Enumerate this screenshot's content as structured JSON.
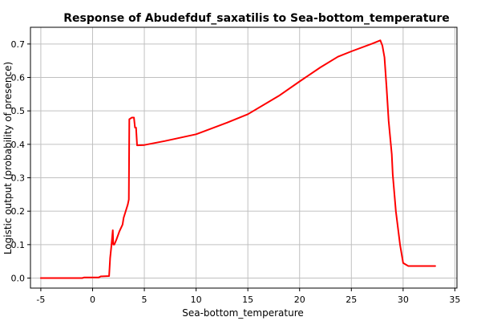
{
  "chart_data": {
    "type": "line",
    "title": "Response of Abudefduf_saxatilis to Sea-bottom_temperature",
    "xlabel": "Sea-bottom_temperature",
    "ylabel": "Logistic output (probability of presence)",
    "xlim": [
      -6.0,
      35.2
    ],
    "ylim": [
      -0.03,
      0.75
    ],
    "xticks": [
      -5,
      0,
      5,
      10,
      15,
      20,
      25,
      30,
      35
    ],
    "yticks": [
      0.0,
      0.1,
      0.2,
      0.3,
      0.4,
      0.5,
      0.6,
      0.7
    ],
    "grid": true,
    "line_color": "#ff0000",
    "series": [
      {
        "x": [
          -5.0,
          -1.0,
          -0.8,
          0.6,
          0.8,
          1.6,
          1.7,
          1.8,
          1.95,
          2.0,
          2.05,
          2.1,
          2.3,
          2.6,
          2.9,
          3.0,
          3.4,
          3.5,
          3.55,
          3.8,
          4.0,
          4.1,
          4.2,
          4.3,
          5.0,
          7.0,
          10.0,
          13.0,
          15.0,
          18.0,
          20.0,
          22.0,
          23.7,
          25.0,
          27.0,
          27.8,
          28.0,
          28.2,
          28.4,
          28.6,
          28.9,
          29.0,
          29.3,
          29.7,
          30.0,
          30.5,
          33.1
        ],
        "y": [
          0.0,
          0.0,
          0.002,
          0.002,
          0.005,
          0.006,
          0.06,
          0.09,
          0.143,
          0.1,
          0.1,
          0.1,
          0.115,
          0.14,
          0.16,
          0.18,
          0.22,
          0.235,
          0.475,
          0.48,
          0.48,
          0.45,
          0.45,
          0.397,
          0.398,
          0.41,
          0.43,
          0.465,
          0.49,
          0.545,
          0.588,
          0.63,
          0.662,
          0.678,
          0.701,
          0.711,
          0.695,
          0.66,
          0.57,
          0.47,
          0.37,
          0.31,
          0.2,
          0.1,
          0.045,
          0.036,
          0.036
        ]
      }
    ]
  }
}
